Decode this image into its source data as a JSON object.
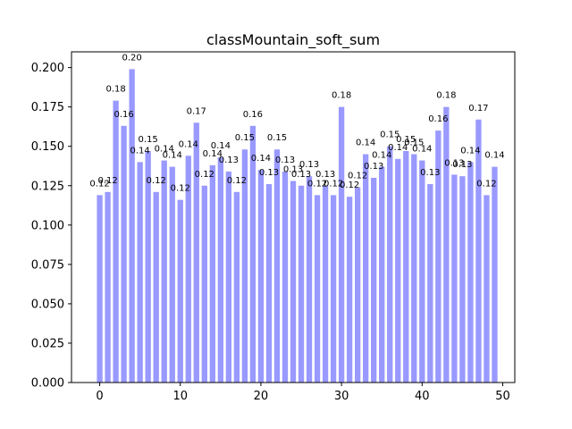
{
  "chart_data": {
    "type": "bar",
    "title": "classMountain_soft_sum",
    "xlabel": "",
    "ylabel": "",
    "x": [
      0,
      1,
      2,
      3,
      4,
      5,
      6,
      7,
      8,
      9,
      10,
      11,
      12,
      13,
      14,
      15,
      16,
      17,
      18,
      19,
      20,
      21,
      22,
      23,
      24,
      25,
      26,
      27,
      28,
      29,
      30,
      31,
      32,
      33,
      34,
      35,
      36,
      37,
      38,
      39,
      40,
      41,
      42,
      43,
      44,
      45,
      46,
      47,
      48,
      49
    ],
    "values": [
      0.119,
      0.121,
      0.179,
      0.163,
      0.199,
      0.14,
      0.147,
      0.121,
      0.141,
      0.137,
      0.116,
      0.144,
      0.165,
      0.125,
      0.138,
      0.143,
      0.134,
      0.121,
      0.148,
      0.163,
      0.135,
      0.126,
      0.148,
      0.134,
      0.128,
      0.125,
      0.131,
      0.119,
      0.125,
      0.119,
      0.175,
      0.118,
      0.124,
      0.145,
      0.13,
      0.137,
      0.15,
      0.142,
      0.147,
      0.145,
      0.141,
      0.126,
      0.16,
      0.175,
      0.132,
      0.131,
      0.14,
      0.167,
      0.119,
      0.137
    ],
    "data_labels": [
      "0.12",
      "0.12",
      "0.18",
      "0.16",
      "0.20",
      "0.14",
      "0.15",
      "0.12",
      "0.14",
      "0.14",
      "0.12",
      "0.14",
      "0.17",
      "0.12",
      "0.14",
      "0.14",
      "0.13",
      "0.12",
      "0.15",
      "0.16",
      "0.14",
      "0.13",
      "0.15",
      "0.13",
      "0.13",
      "0.13",
      "0.13",
      "0.12",
      "0.13",
      "0.12",
      "0.18",
      "0.12",
      "0.12",
      "0.14",
      "0.13",
      "0.14",
      "0.15",
      "0.14",
      "0.15",
      "0.15",
      "0.14",
      "0.13",
      "0.16",
      "0.18",
      "0.13",
      "0.13",
      "0.14",
      "0.17",
      "0.12",
      "0.14"
    ],
    "xlim": [
      -3.5,
      51.5
    ],
    "ylim": [
      0,
      0.21
    ],
    "xticks": [
      "0",
      "10",
      "20",
      "30",
      "40",
      "50"
    ],
    "yticks": [
      "0.000",
      "0.025",
      "0.050",
      "0.075",
      "0.100",
      "0.125",
      "0.150",
      "0.175",
      "0.200"
    ],
    "bar_color": "#9999ff",
    "grid": false,
    "legend": "none"
  }
}
